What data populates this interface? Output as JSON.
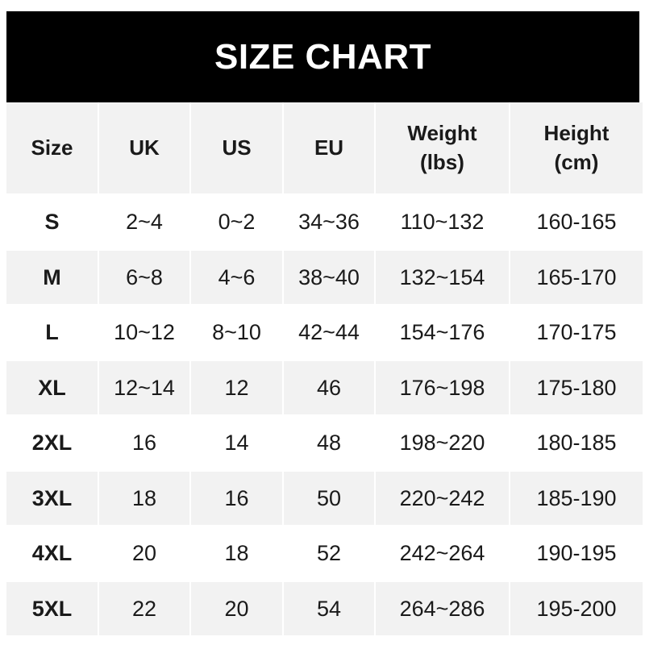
{
  "title": "SIZE CHART",
  "headers": [
    "Size",
    "UK",
    "US",
    "EU",
    "Weight\n(lbs)",
    "Height\n(cm)"
  ],
  "rows": [
    [
      "S",
      "2~4",
      "0~2",
      "34~36",
      "110~132",
      "160-165"
    ],
    [
      "M",
      "6~8",
      "4~6",
      "38~40",
      "132~154",
      "165-170"
    ],
    [
      "L",
      "10~12",
      "8~10",
      "42~44",
      "154~176",
      "170-175"
    ],
    [
      "XL",
      "12~14",
      "12",
      "46",
      "176~198",
      "175-180"
    ],
    [
      "2XL",
      "16",
      "14",
      "48",
      "198~220",
      "180-185"
    ],
    [
      "3XL",
      "18",
      "16",
      "50",
      "220~242",
      "185-190"
    ],
    [
      "4XL",
      "20",
      "18",
      "52",
      "242~264",
      "190-195"
    ],
    [
      "5XL",
      "22",
      "20",
      "54",
      "264~286",
      "195-200"
    ]
  ],
  "colors": {
    "title_bg": "#000000",
    "stripe": "#f2f2f2",
    "text": "#1a1a1a"
  }
}
